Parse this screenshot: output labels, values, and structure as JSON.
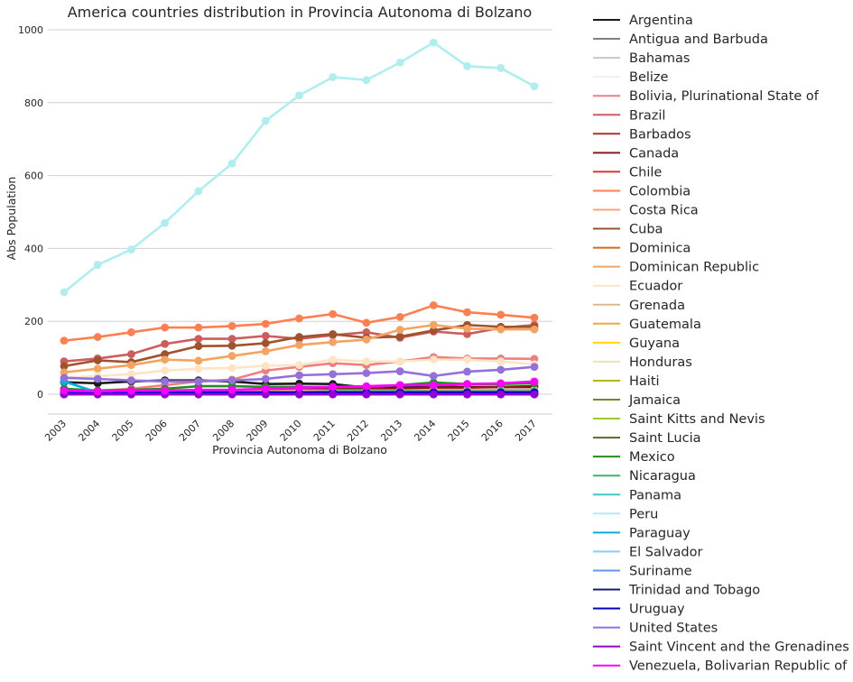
{
  "chart_data": {
    "type": "line",
    "title": "America countries distribution in Provincia Autonoma di Bolzano",
    "xlabel": "Provincia Autonoma di Bolzano",
    "ylabel": "Abs Population",
    "categories": [
      "2003",
      "2004",
      "2005",
      "2006",
      "2007",
      "2008",
      "2009",
      "2010",
      "2011",
      "2012",
      "2013",
      "2014",
      "2015",
      "2016",
      "2017"
    ],
    "ylim": [
      -55,
      1000
    ],
    "yticks": [
      0,
      200,
      400,
      600,
      800,
      1000
    ],
    "grid": "horizontal",
    "legend_placement": "outside-right",
    "series": [
      {
        "name": "Argentina",
        "color": "#1a1a1a",
        "values": [
          33,
          30,
          35,
          38,
          38,
          35,
          28,
          29,
          28,
          18,
          18,
          20,
          20,
          20,
          20
        ]
      },
      {
        "name": "Antigua and Barbuda",
        "color": "#808080",
        "values": [
          0,
          0,
          0,
          0,
          0,
          0,
          0,
          0,
          0,
          0,
          0,
          0,
          0,
          0,
          0
        ]
      },
      {
        "name": "Bahamas",
        "color": "#c8c8c8",
        "values": [
          0,
          0,
          0,
          0,
          0,
          0,
          0,
          0,
          0,
          0,
          0,
          0,
          0,
          0,
          0
        ]
      },
      {
        "name": "Belize",
        "color": "#f0f0f0",
        "values": [
          0,
          0,
          0,
          0,
          0,
          0,
          0,
          0,
          0,
          0,
          0,
          0,
          0,
          0,
          0
        ]
      },
      {
        "name": "Bolivia, Plurinational State of",
        "color": "#f08080",
        "values": [
          5,
          10,
          15,
          25,
          35,
          40,
          65,
          75,
          85,
          80,
          90,
          102,
          98,
          98,
          97
        ]
      },
      {
        "name": "Brazil",
        "color": "#cd5c5c",
        "values": [
          90,
          98,
          110,
          138,
          152,
          152,
          160,
          152,
          162,
          170,
          155,
          172,
          165,
          182,
          190
        ]
      },
      {
        "name": "Barbados",
        "color": "#b03030",
        "values": [
          0,
          0,
          0,
          0,
          0,
          0,
          0,
          0,
          0,
          0,
          0,
          0,
          0,
          0,
          0
        ]
      },
      {
        "name": "Canada",
        "color": "#8b1a1a",
        "values": [
          5,
          5,
          5,
          8,
          8,
          8,
          10,
          12,
          15,
          15,
          15,
          18,
          18,
          20,
          22
        ]
      },
      {
        "name": "Chile",
        "color": "#e03030",
        "values": [
          5,
          5,
          5,
          5,
          5,
          5,
          8,
          8,
          8,
          8,
          8,
          10,
          10,
          12,
          12
        ]
      },
      {
        "name": "Colombia",
        "color": "#ff7f50",
        "values": [
          147,
          157,
          170,
          183,
          183,
          187,
          193,
          208,
          220,
          196,
          212,
          244,
          225,
          218,
          210
        ]
      },
      {
        "name": "Costa Rica",
        "color": "#ffa07a",
        "values": [
          5,
          5,
          5,
          8,
          8,
          8,
          8,
          10,
          10,
          10,
          10,
          12,
          12,
          12,
          12
        ]
      },
      {
        "name": "Cuba",
        "color": "#a0522d",
        "values": [
          77,
          93,
          88,
          110,
          132,
          133,
          140,
          157,
          165,
          155,
          158,
          175,
          190,
          185,
          185
        ]
      },
      {
        "name": "Dominica",
        "color": "#d2691e",
        "values": [
          0,
          0,
          0,
          0,
          0,
          0,
          0,
          0,
          0,
          0,
          0,
          0,
          0,
          0,
          0
        ]
      },
      {
        "name": "Dominican Republic",
        "color": "#f4a460",
        "values": [
          60,
          70,
          80,
          95,
          92,
          105,
          118,
          135,
          143,
          150,
          177,
          190,
          180,
          178,
          178
        ]
      },
      {
        "name": "Ecuador",
        "color": "#ffe4c4",
        "values": [
          45,
          50,
          55,
          65,
          70,
          72,
          78,
          80,
          95,
          90,
          90,
          95,
          95,
          90,
          82
        ]
      },
      {
        "name": "Grenada",
        "color": "#deb887",
        "values": [
          0,
          0,
          0,
          0,
          0,
          0,
          0,
          0,
          0,
          0,
          0,
          0,
          0,
          0,
          0
        ]
      },
      {
        "name": "Guatemala",
        "color": "#f0a830",
        "values": [
          3,
          3,
          3,
          3,
          3,
          3,
          3,
          3,
          3,
          3,
          3,
          3,
          3,
          3,
          3
        ]
      },
      {
        "name": "Guyana",
        "color": "#ffd700",
        "values": [
          0,
          0,
          0,
          0,
          0,
          0,
          0,
          0,
          0,
          0,
          0,
          0,
          0,
          0,
          0
        ]
      },
      {
        "name": "Honduras",
        "color": "#f5deb3",
        "values": [
          3,
          3,
          3,
          3,
          5,
          5,
          5,
          5,
          5,
          5,
          5,
          8,
          8,
          8,
          8
        ]
      },
      {
        "name": "Haiti",
        "color": "#b8b800",
        "values": [
          3,
          3,
          3,
          3,
          3,
          3,
          3,
          3,
          3,
          3,
          3,
          3,
          3,
          3,
          3
        ]
      },
      {
        "name": "Jamaica",
        "color": "#6b8e23",
        "values": [
          2,
          2,
          2,
          2,
          2,
          2,
          2,
          2,
          2,
          2,
          2,
          2,
          2,
          2,
          2
        ]
      },
      {
        "name": "Saint Kitts and Nevis",
        "color": "#9acd32",
        "values": [
          0,
          0,
          0,
          0,
          0,
          0,
          0,
          0,
          0,
          0,
          0,
          0,
          0,
          0,
          0
        ]
      },
      {
        "name": "Saint Lucia",
        "color": "#556b2f",
        "values": [
          0,
          0,
          0,
          0,
          0,
          0,
          0,
          0,
          0,
          0,
          0,
          0,
          0,
          0,
          0
        ]
      },
      {
        "name": "Mexico",
        "color": "#228b22",
        "values": [
          15,
          10,
          12,
          15,
          22,
          22,
          20,
          20,
          20,
          20,
          25,
          32,
          28,
          28,
          30
        ]
      },
      {
        "name": "Nicaragua",
        "color": "#3cb371",
        "values": [
          5,
          5,
          5,
          5,
          5,
          5,
          5,
          5,
          8,
          8,
          8,
          8,
          8,
          8,
          8
        ]
      },
      {
        "name": "Panama",
        "color": "#40c8c8",
        "values": [
          3,
          3,
          3,
          3,
          3,
          3,
          3,
          3,
          3,
          3,
          3,
          3,
          3,
          3,
          3
        ]
      },
      {
        "name": "Peru",
        "color": "#aeeeee",
        "values": [
          280,
          355,
          397,
          470,
          557,
          633,
          750,
          820,
          870,
          862,
          910,
          965,
          900,
          895,
          845
        ]
      },
      {
        "name": "Paraguay",
        "color": "#00b0e0",
        "values": [
          35,
          5,
          5,
          5,
          5,
          5,
          5,
          5,
          5,
          5,
          5,
          5,
          5,
          5,
          5
        ]
      },
      {
        "name": "El Salvador",
        "color": "#87cefa",
        "values": [
          5,
          5,
          5,
          5,
          5,
          5,
          5,
          5,
          5,
          5,
          5,
          5,
          5,
          5,
          5
        ]
      },
      {
        "name": "Suriname",
        "color": "#6495ed",
        "values": [
          0,
          0,
          0,
          0,
          0,
          0,
          0,
          0,
          0,
          0,
          0,
          0,
          0,
          0,
          0
        ]
      },
      {
        "name": "Trinidad and Tobago",
        "color": "#191970",
        "values": [
          0,
          0,
          0,
          0,
          0,
          0,
          0,
          0,
          0,
          0,
          0,
          0,
          0,
          0,
          0
        ]
      },
      {
        "name": "Uruguay",
        "color": "#0000cd",
        "values": [
          5,
          5,
          5,
          5,
          5,
          5,
          5,
          5,
          5,
          5,
          5,
          5,
          5,
          5,
          5
        ]
      },
      {
        "name": "United States",
        "color": "#9370db",
        "values": [
          45,
          42,
          38,
          35,
          35,
          38,
          42,
          52,
          55,
          58,
          63,
          50,
          62,
          67,
          75
        ]
      },
      {
        "name": "Saint Vincent and the Grenadines",
        "color": "#9400d3",
        "values": [
          0,
          0,
          0,
          0,
          0,
          0,
          0,
          0,
          0,
          0,
          0,
          0,
          0,
          0,
          0
        ]
      },
      {
        "name": "Venezuela, Bolivarian Republic of",
        "color": "#ff00ff",
        "values": [
          10,
          8,
          10,
          10,
          12,
          12,
          15,
          18,
          20,
          22,
          25,
          25,
          28,
          30,
          35
        ]
      }
    ]
  }
}
